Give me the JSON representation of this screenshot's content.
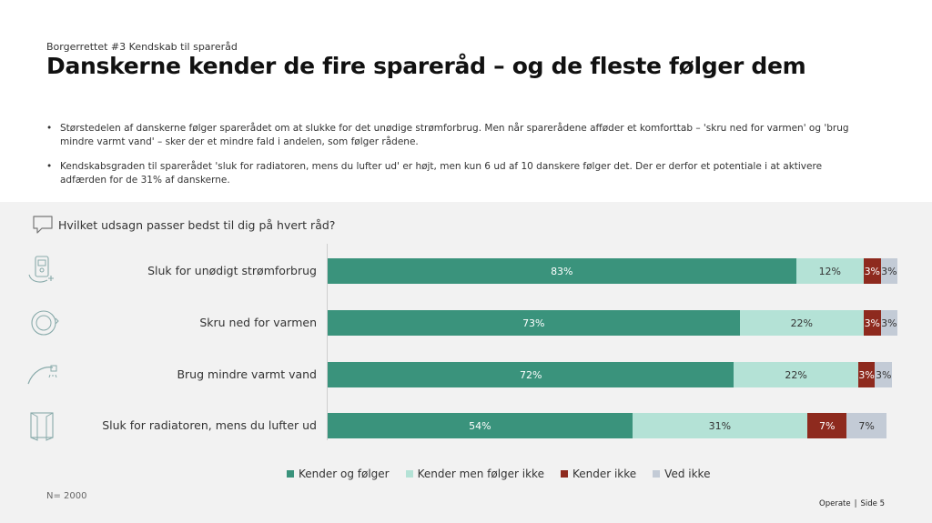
{
  "header": {
    "kicker": "Borgerrettet #3 Kendskab til spareråd",
    "title": "Danskerne kender de fire spareråd – og de fleste følger dem"
  },
  "bullets": [
    "Størstedelen af danskerne følger sparerådet om at slukke for det unødige strømforbrug. Men når sparerådene afføder et komforttab – 'skru ned for varmen' og 'brug mindre varmt vand' – sker der et mindre fald i andelen, som følger rådene.",
    "Kendskabsgraden til sparerådet 'sluk for radiatoren, mens du lufter ud' er højt, men kun 6 ud af 10 danskere følger det. Der er derfor et potentiale i at aktivere adfærden for de 31% af danskerne."
  ],
  "question": "Hvilket udsagn passer bedst til dig på hvert råd?",
  "icons": {
    "question": "speech-bubble-icon",
    "rows": [
      "power-meter-plug-icon",
      "thermostat-dial-icon",
      "shower-faucet-icon",
      "open-window-icon"
    ]
  },
  "chart_data": {
    "type": "bar",
    "orientation": "horizontal",
    "stacked": true,
    "categories": [
      "Sluk for unødigt strømforbrug",
      "Skru ned for varmen",
      "Brug mindre varmt vand",
      "Sluk for radiatoren, mens du lufter ud"
    ],
    "series": [
      {
        "name": "Kender og følger",
        "color": "#3a937c",
        "label_color": "#ffffff",
        "values": [
          83,
          73,
          72,
          54
        ]
      },
      {
        "name": "Kender men følger ikke",
        "color": "#b4e2d6",
        "label_color": "#333333",
        "values": [
          12,
          22,
          22,
          31
        ]
      },
      {
        "name": "Kender ikke",
        "color": "#8e2a1e",
        "label_color": "#ffffff",
        "values": [
          3,
          3,
          3,
          7
        ]
      },
      {
        "name": "Ved ikke",
        "color": "#c3cbd6",
        "label_color": "#333333",
        "values": [
          3,
          3,
          3,
          7
        ]
      }
    ],
    "unit": "%",
    "xlim": [
      0,
      100
    ],
    "legend_position": "bottom"
  },
  "note": "N= 2000",
  "footer": {
    "brand": "Operate",
    "page": "Side 5"
  }
}
